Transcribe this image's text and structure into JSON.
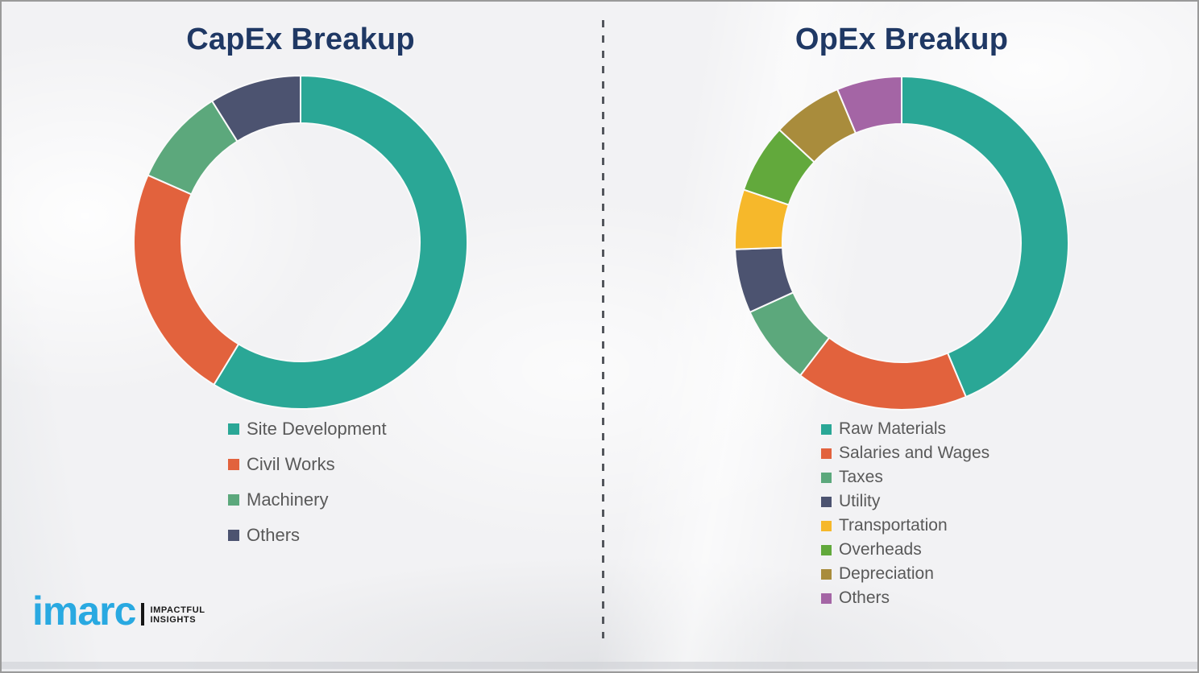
{
  "page": {
    "background_color": "#f2f2f4",
    "border_color": "#9a9a9a",
    "divider": {
      "orientation": "vertical",
      "style": "dashed",
      "color": "#53565c"
    }
  },
  "styles": {
    "title_color": "#1f3864",
    "legend_text_color": "#595959",
    "segment_gap_color": "#fafafa"
  },
  "logo": {
    "brand": "imarc",
    "brand_color": "#29a9e1",
    "tagline_line1": "IMPACTFUL",
    "tagline_line2": "INSIGHTS",
    "tagline_color": "#1a1a1a"
  },
  "chart_data": [
    {
      "type": "pie",
      "subtype": "donut",
      "title": "CapEx Breakup",
      "categories": [
        "Site Development",
        "Civil Works",
        "Machinery",
        "Others"
      ],
      "values": [
        58.7,
        22.9,
        9.5,
        8.9
      ],
      "colors": [
        "#2aa796",
        "#e2623d",
        "#5ca87c",
        "#4c5370"
      ],
      "start_angle_deg": 0,
      "direction": "clockwise",
      "legend_position": "bottom-left",
      "data_labels": false,
      "note": "Segment shares estimated from arc angles; the image shows no numeric labels."
    },
    {
      "type": "pie",
      "subtype": "donut",
      "title": "OpEx Breakup",
      "categories": [
        "Raw Materials",
        "Salaries and Wages",
        "Taxes",
        "Utility",
        "Transportation",
        "Overheads",
        "Depreciation",
        "Others"
      ],
      "values": [
        43.7,
        16.7,
        7.8,
        6.2,
        5.8,
        6.7,
        6.8,
        6.3
      ],
      "colors": [
        "#2aa796",
        "#e2623d",
        "#5ca87c",
        "#4c5370",
        "#f6b82b",
        "#62a93c",
        "#a98c3c",
        "#a465a5"
      ],
      "start_angle_deg": 0,
      "direction": "clockwise",
      "legend_position": "bottom-left",
      "data_labels": false,
      "note": "Segment shares estimated from arc angles; the image shows no numeric labels."
    }
  ]
}
